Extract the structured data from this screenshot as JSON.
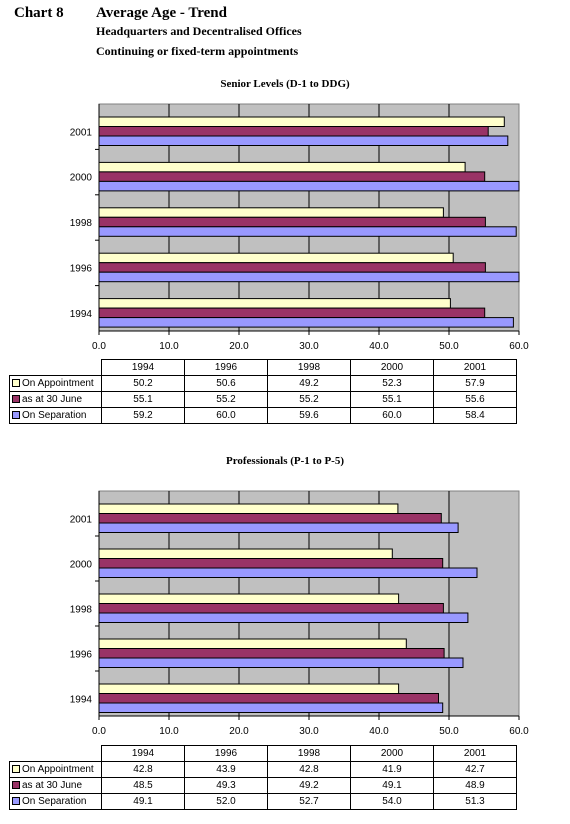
{
  "header": {
    "chart_label": "Chart 8",
    "title": "Average Age - Trend",
    "subtitle1": "Headquarters and Decentralised Offices",
    "subtitle2": "Continuing or fixed-term appointments"
  },
  "colors": {
    "plot_bg": "#c0c0c0",
    "on_appointment": "#ffffcc",
    "as_at_30_june": "#993366",
    "on_separation": "#9999ff"
  },
  "chart_data": [
    {
      "type": "bar",
      "orientation": "horizontal",
      "title": "Senior Levels (D-1 to DDG)",
      "categories": [
        "1994",
        "1996",
        "1998",
        "2000",
        "2001"
      ],
      "xlim": [
        0,
        60
      ],
      "xticks": [
        "0.0",
        "10.0",
        "20.0",
        "30.0",
        "40.0",
        "50.0",
        "60.0"
      ],
      "grid": true,
      "series": [
        {
          "name": "On Appointment",
          "values": [
            50.2,
            50.6,
            49.2,
            52.3,
            57.9
          ],
          "labels": [
            "50.2",
            "50.6",
            "49.2",
            "52.3",
            "57.9"
          ]
        },
        {
          "name": "as at 30 June",
          "values": [
            55.1,
            55.2,
            55.2,
            55.1,
            55.6
          ],
          "labels": [
            "55.1",
            "55.2",
            "55.2",
            "55.1",
            "55.6"
          ]
        },
        {
          "name": "On Separation",
          "values": [
            59.2,
            60.0,
            59.6,
            60.0,
            58.4
          ],
          "labels": [
            "59.2",
            "60.0",
            "59.6",
            "60.0",
            "58.4"
          ]
        }
      ]
    },
    {
      "type": "bar",
      "orientation": "horizontal",
      "title": "Professionals (P-1 to P-5)",
      "categories": [
        "1994",
        "1996",
        "1998",
        "2000",
        "2001"
      ],
      "xlim": [
        0,
        60
      ],
      "xticks": [
        "0.0",
        "10.0",
        "20.0",
        "30.0",
        "40.0",
        "50.0",
        "60.0"
      ],
      "grid": true,
      "series": [
        {
          "name": "On Appointment",
          "values": [
            42.8,
            43.9,
            42.8,
            41.9,
            42.7
          ],
          "labels": [
            "42.8",
            "43.9",
            "42.8",
            "41.9",
            "42.7"
          ]
        },
        {
          "name": "as at 30 June",
          "values": [
            48.5,
            49.3,
            49.2,
            49.1,
            48.9
          ],
          "labels": [
            "48.5",
            "49.3",
            "49.2",
            "49.1",
            "48.9"
          ]
        },
        {
          "name": "On Separation",
          "values": [
            49.1,
            52.0,
            52.7,
            54.0,
            51.3
          ],
          "labels": [
            "49.1",
            "52.0",
            "52.7",
            "54.0",
            "51.3"
          ]
        }
      ]
    }
  ]
}
